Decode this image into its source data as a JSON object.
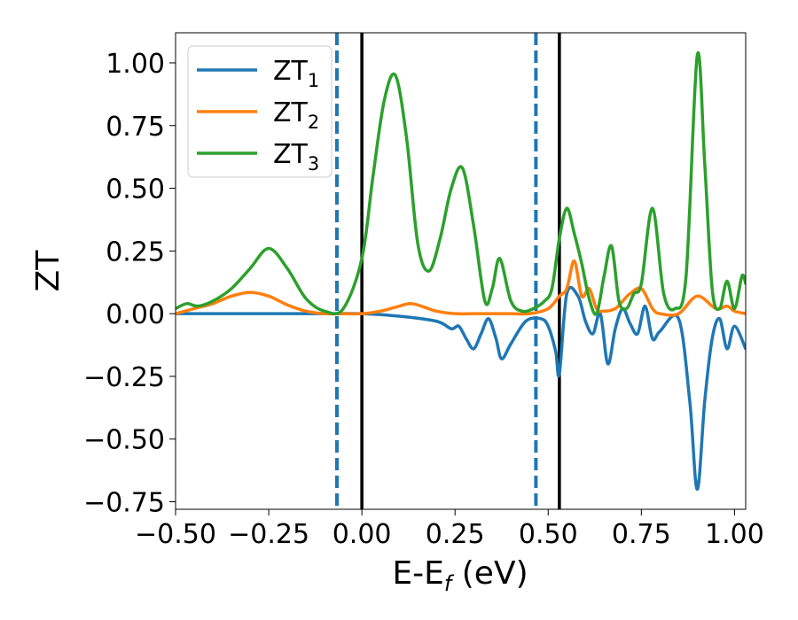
{
  "chart_data": {
    "type": "line",
    "title": "",
    "xlabel": "E-E",
    "xlabel_sub": "f",
    "xlabel_unit": " (eV)",
    "ylabel": "ZT",
    "xlim": [
      -0.5,
      1.03
    ],
    "ylim": [
      -0.78,
      1.12
    ],
    "xticks": [
      -0.5,
      -0.25,
      0.0,
      0.25,
      0.5,
      0.75,
      1.0
    ],
    "xtick_labels": [
      "−0.50",
      "−0.25",
      "0.00",
      "0.25",
      "0.50",
      "0.75",
      "1.00"
    ],
    "yticks": [
      1.0,
      0.75,
      0.5,
      0.25,
      0.0,
      -0.25,
      -0.5,
      -0.75
    ],
    "ytick_labels": [
      "1.00",
      "0.75",
      "0.50",
      "0.25",
      "0.00",
      "−0.25",
      "−0.50",
      "−0.75"
    ],
    "grid": false,
    "legend_position": "top-left",
    "vlines": [
      {
        "x": -0.067,
        "style": "dashed",
        "color": "#1f77b4"
      },
      {
        "x": 0.0,
        "style": "solid",
        "color": "#000000"
      },
      {
        "x": 0.467,
        "style": "dashed",
        "color": "#1f77b4"
      },
      {
        "x": 0.53,
        "style": "solid",
        "color": "#000000"
      }
    ],
    "series": [
      {
        "name": "ZT",
        "subscript": "1",
        "color": "#1f77b4",
        "x": [
          -0.5,
          -0.4,
          -0.3,
          -0.2,
          -0.1,
          0.0,
          0.1,
          0.2,
          0.24,
          0.26,
          0.28,
          0.3,
          0.32,
          0.34,
          0.36,
          0.375,
          0.4,
          0.44,
          0.48,
          0.5,
          0.52,
          0.53,
          0.55,
          0.58,
          0.6,
          0.62,
          0.64,
          0.66,
          0.68,
          0.7,
          0.72,
          0.74,
          0.76,
          0.78,
          0.8,
          0.85,
          0.88,
          0.9,
          0.92,
          0.94,
          0.96,
          0.98,
          1.0,
          1.03
        ],
        "y": [
          0.0,
          0.0,
          0.0,
          0.0,
          0.0,
          0.0,
          -0.01,
          -0.03,
          -0.06,
          -0.05,
          -0.1,
          -0.14,
          -0.08,
          -0.02,
          -0.1,
          -0.18,
          -0.12,
          -0.03,
          -0.02,
          -0.05,
          -0.15,
          -0.24,
          0.08,
          0.07,
          -0.03,
          -0.08,
          0.0,
          -0.2,
          -0.06,
          0.02,
          -0.04,
          -0.08,
          0.03,
          -0.1,
          -0.07,
          -0.02,
          -0.35,
          -0.7,
          -0.35,
          -0.1,
          -0.02,
          -0.14,
          -0.05,
          -0.14
        ]
      },
      {
        "name": "ZT",
        "subscript": "2",
        "color": "#ff7f0e",
        "x": [
          -0.5,
          -0.45,
          -0.4,
          -0.35,
          -0.3,
          -0.25,
          -0.2,
          -0.15,
          -0.1,
          -0.05,
          0.0,
          0.05,
          0.1,
          0.13,
          0.16,
          0.2,
          0.25,
          0.3,
          0.35,
          0.4,
          0.45,
          0.5,
          0.53,
          0.55,
          0.57,
          0.59,
          0.61,
          0.63,
          0.65,
          0.68,
          0.7,
          0.72,
          0.75,
          0.78,
          0.8,
          0.85,
          0.9,
          0.95,
          0.98,
          1.0,
          1.03
        ],
        "y": [
          0.0,
          0.02,
          0.04,
          0.07,
          0.085,
          0.07,
          0.035,
          0.01,
          0.0,
          0.0,
          0.0,
          0.01,
          0.03,
          0.04,
          0.03,
          0.01,
          0.0,
          0.0,
          0.0,
          0.0,
          0.0,
          0.02,
          0.07,
          0.1,
          0.21,
          0.07,
          0.1,
          0.02,
          0.01,
          0.02,
          0.05,
          0.08,
          0.1,
          0.02,
          0.0,
          0.0,
          0.07,
          0.02,
          0.03,
          0.01,
          0.0
        ]
      },
      {
        "name": "ZT",
        "subscript": "3",
        "color": "#2ca02c",
        "x": [
          -0.5,
          -0.47,
          -0.44,
          -0.4,
          -0.35,
          -0.3,
          -0.25,
          -0.2,
          -0.15,
          -0.1,
          -0.05,
          0.0,
          0.03,
          0.06,
          0.09,
          0.12,
          0.15,
          0.18,
          0.21,
          0.24,
          0.27,
          0.3,
          0.33,
          0.35,
          0.37,
          0.4,
          0.43,
          0.46,
          0.49,
          0.51,
          0.53,
          0.55,
          0.57,
          0.59,
          0.61,
          0.63,
          0.65,
          0.67,
          0.69,
          0.71,
          0.73,
          0.75,
          0.78,
          0.81,
          0.84,
          0.87,
          0.9,
          0.92,
          0.94,
          0.96,
          0.98,
          1.0,
          1.02,
          1.03
        ],
        "y": [
          0.02,
          0.04,
          0.03,
          0.05,
          0.1,
          0.18,
          0.26,
          0.18,
          0.06,
          0.01,
          0.02,
          0.22,
          0.55,
          0.85,
          0.95,
          0.7,
          0.28,
          0.17,
          0.3,
          0.5,
          0.58,
          0.35,
          0.05,
          0.1,
          0.22,
          0.05,
          0.01,
          0.02,
          0.05,
          0.1,
          0.3,
          0.42,
          0.32,
          0.2,
          0.06,
          0.0,
          0.15,
          0.27,
          0.05,
          0.02,
          0.08,
          0.12,
          0.42,
          0.08,
          0.02,
          0.15,
          1.03,
          0.6,
          0.1,
          0.02,
          0.13,
          0.02,
          0.15,
          0.12
        ]
      }
    ]
  }
}
